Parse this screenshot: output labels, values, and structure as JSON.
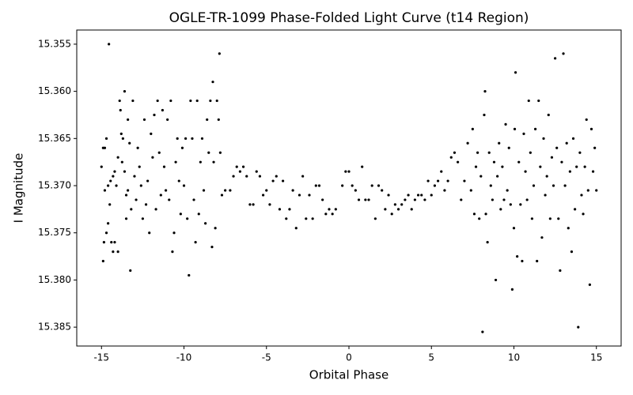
{
  "chart_data": {
    "type": "scatter",
    "title": "OGLE-TR-1099 Phase-Folded Light Curve (t14 Region)",
    "x_label": "Orbital Phase",
    "y_label": "I Magnitude",
    "color": "#000000",
    "y_inverted": true,
    "grid": false,
    "xlim": [
      -16.5,
      16.5
    ],
    "ylim": [
      15.3535,
      15.387
    ],
    "xticks": [
      -15,
      -10,
      -5,
      0,
      5,
      10,
      15
    ],
    "yticks": [
      15.355,
      {
        "value": 15.36,
        "label": "15.360"
      },
      15.365,
      {
        "value": 15.37,
        "label": "15.370"
      },
      15.375,
      {
        "value": 15.38,
        "label": "15.380"
      },
      15.385
    ],
    "x": [
      -15.0,
      -14.9,
      -14.9,
      -14.85,
      -14.8,
      -14.8,
      -14.7,
      -14.7,
      -14.6,
      -14.6,
      -14.55,
      -14.5,
      -14.45,
      -14.4,
      -14.3,
      -14.3,
      -14.2,
      -14.2,
      -14.1,
      -14.0,
      -14.0,
      -13.9,
      -13.85,
      -13.8,
      -13.75,
      -13.7,
      -13.6,
      -13.6,
      -13.5,
      -13.5,
      -13.4,
      -13.4,
      -13.3,
      -13.25,
      -13.2,
      -13.1,
      -13.0,
      -12.9,
      -12.8,
      -12.7,
      -12.6,
      -12.5,
      -12.4,
      -12.3,
      -12.2,
      -12.1,
      -12.0,
      -11.9,
      -11.8,
      -11.7,
      -11.6,
      -11.5,
      -11.4,
      -11.3,
      -11.2,
      -11.1,
      -11.0,
      -10.9,
      -10.8,
      -10.7,
      -10.6,
      -10.5,
      -10.4,
      -10.3,
      -10.2,
      -10.1,
      -10.0,
      -9.9,
      -9.8,
      -9.7,
      -9.6,
      -9.5,
      -9.4,
      -9.3,
      -9.2,
      -9.1,
      -9.0,
      -8.9,
      -8.8,
      -8.7,
      -8.6,
      -8.5,
      -8.4,
      -8.3,
      -8.25,
      -8.2,
      -8.1,
      -8.0,
      -7.9,
      -7.85,
      -7.8,
      -7.7,
      -7.5,
      -7.2,
      -7.0,
      -6.8,
      -6.6,
      -6.4,
      -6.2,
      -6.0,
      -5.8,
      -5.6,
      -5.4,
      -5.2,
      -5.0,
      -4.8,
      -4.6,
      -4.4,
      -4.2,
      -4.0,
      -3.8,
      -3.6,
      -3.4,
      -3.2,
      -3.0,
      -2.8,
      -2.6,
      -2.4,
      -2.2,
      -2.0,
      -1.8,
      -1.6,
      -1.4,
      -1.2,
      -1.0,
      -0.8,
      -0.4,
      -0.2,
      0.0,
      0.2,
      0.4,
      0.6,
      0.8,
      1.0,
      1.2,
      1.4,
      1.6,
      1.8,
      2.0,
      2.2,
      2.4,
      2.6,
      2.8,
      3.0,
      3.2,
      3.4,
      3.6,
      3.8,
      4.0,
      4.2,
      4.4,
      4.6,
      4.8,
      5.0,
      5.2,
      5.4,
      5.6,
      5.8,
      6.0,
      6.2,
      6.4,
      6.6,
      6.8,
      7.0,
      7.2,
      7.4,
      7.5,
      7.6,
      7.7,
      7.8,
      7.9,
      8.0,
      8.1,
      8.2,
      8.25,
      8.3,
      8.4,
      8.5,
      8.6,
      8.7,
      8.8,
      8.9,
      9.0,
      9.1,
      9.2,
      9.3,
      9.4,
      9.5,
      9.6,
      9.7,
      9.8,
      9.9,
      10.0,
      10.05,
      10.1,
      10.2,
      10.3,
      10.4,
      10.5,
      10.6,
      10.7,
      10.8,
      10.9,
      11.0,
      11.1,
      11.2,
      11.3,
      11.4,
      11.5,
      11.6,
      11.7,
      11.8,
      11.9,
      12.0,
      12.1,
      12.2,
      12.3,
      12.4,
      12.5,
      12.6,
      12.7,
      12.8,
      12.9,
      13.0,
      13.1,
      13.2,
      13.3,
      13.4,
      13.5,
      13.6,
      13.7,
      13.8,
      13.9,
      14.0,
      14.1,
      14.2,
      14.3,
      14.4,
      14.5,
      14.6,
      14.7,
      14.8,
      14.9,
      15.0
    ],
    "values": [
      15.368,
      15.366,
      15.378,
      15.376,
      15.3705,
      15.366,
      15.365,
      15.375,
      15.374,
      15.37,
      15.355,
      15.372,
      15.3695,
      15.376,
      15.369,
      15.377,
      15.3685,
      15.376,
      15.37,
      15.367,
      15.377,
      15.361,
      15.362,
      15.3645,
      15.3675,
      15.365,
      15.36,
      15.3685,
      15.371,
      15.3735,
      15.363,
      15.3705,
      15.3655,
      15.379,
      15.3725,
      15.361,
      15.369,
      15.3715,
      15.366,
      15.368,
      15.37,
      15.3735,
      15.363,
      15.372,
      15.3695,
      15.375,
      15.3645,
      15.367,
      15.3625,
      15.3725,
      15.361,
      15.3665,
      15.371,
      15.362,
      15.368,
      15.3705,
      15.363,
      15.3715,
      15.361,
      15.377,
      15.375,
      15.3675,
      15.365,
      15.3695,
      15.373,
      15.366,
      15.37,
      15.365,
      15.3735,
      15.3795,
      15.361,
      15.365,
      15.3715,
      15.376,
      15.361,
      15.373,
      15.3675,
      15.365,
      15.3705,
      15.374,
      15.363,
      15.3665,
      15.361,
      15.3765,
      15.359,
      15.3675,
      15.3745,
      15.361,
      15.363,
      15.356,
      15.3665,
      15.371,
      15.3705,
      15.3705,
      15.369,
      15.368,
      15.3685,
      15.368,
      15.369,
      15.372,
      15.372,
      15.3685,
      15.369,
      15.371,
      15.3705,
      15.372,
      15.3695,
      15.369,
      15.3725,
      15.3695,
      15.3735,
      15.3725,
      15.3705,
      15.3745,
      15.371,
      15.369,
      15.3735,
      15.371,
      15.3735,
      15.37,
      15.37,
      15.3715,
      15.373,
      15.3725,
      15.373,
      15.3725,
      15.37,
      15.3685,
      15.3685,
      15.37,
      15.3705,
      15.3715,
      15.368,
      15.3715,
      15.3715,
      15.37,
      15.3735,
      15.37,
      15.3705,
      15.3725,
      15.371,
      15.373,
      15.372,
      15.3725,
      15.372,
      15.3715,
      15.371,
      15.3725,
      15.3715,
      15.371,
      15.371,
      15.3715,
      15.3695,
      15.371,
      15.37,
      15.3695,
      15.3685,
      15.3705,
      15.3695,
      15.367,
      15.3665,
      15.3675,
      15.3715,
      15.3695,
      15.3655,
      15.3705,
      15.364,
      15.373,
      15.368,
      15.3665,
      15.3735,
      15.369,
      15.3855,
      15.3625,
      15.36,
      15.373,
      15.376,
      15.3665,
      15.37,
      15.3715,
      15.3675,
      15.38,
      15.369,
      15.3655,
      15.3725,
      15.368,
      15.3715,
      15.3635,
      15.3705,
      15.366,
      15.372,
      15.381,
      15.3745,
      15.364,
      15.358,
      15.3775,
      15.3675,
      15.372,
      15.378,
      15.3645,
      15.3685,
      15.3715,
      15.361,
      15.3665,
      15.3735,
      15.37,
      15.364,
      15.378,
      15.361,
      15.368,
      15.3755,
      15.365,
      15.371,
      15.369,
      15.3625,
      15.3735,
      15.367,
      15.37,
      15.3565,
      15.366,
      15.3735,
      15.379,
      15.3675,
      15.356,
      15.37,
      15.3655,
      15.3745,
      15.3685,
      15.377,
      15.365,
      15.3725,
      15.368,
      15.385,
      15.3665,
      15.371,
      15.373,
      15.368,
      15.363,
      15.3705,
      15.3805,
      15.364,
      15.3685,
      15.366,
      15.3705
    ]
  }
}
